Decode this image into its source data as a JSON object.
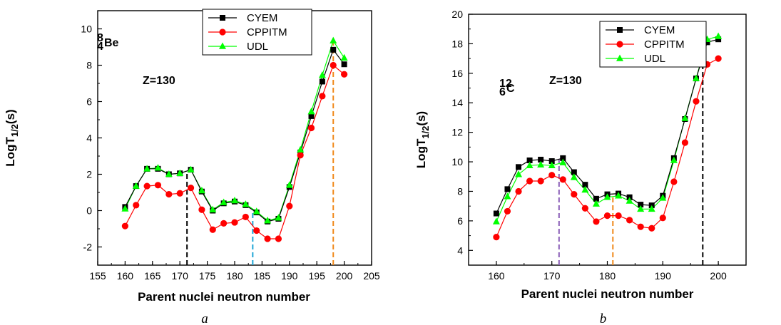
{
  "chart_data": [
    {
      "type": "line",
      "caption": "a",
      "xlabel": "Parent nuclei neutron number",
      "ylabel": "LogT1/2(s)",
      "xlim": [
        155,
        205
      ],
      "ylim": [
        -3,
        11
      ],
      "xticks": [
        155,
        160,
        165,
        170,
        175,
        180,
        185,
        190,
        195,
        200,
        205
      ],
      "yticks": [
        -2,
        0,
        2,
        4,
        6,
        8,
        10
      ],
      "legend_position": "top-center",
      "grid": false,
      "annotations": {
        "nucleus": {
          "mass": "8",
          "charge": "4",
          "symbol": "Be"
        },
        "z_label": "Z=130"
      },
      "x": [
        160,
        162,
        164,
        166,
        168,
        170,
        172,
        174,
        176,
        178,
        180,
        182,
        184,
        186,
        188,
        190,
        192,
        194,
        196,
        198,
        200
      ],
      "series": [
        {
          "name": "CYEM",
          "color": "#000000",
          "marker": "square",
          "values": [
            0.2,
            1.35,
            2.3,
            2.3,
            2.0,
            2.05,
            2.25,
            1.05,
            0.0,
            0.4,
            0.5,
            0.3,
            -0.1,
            -0.6,
            -0.45,
            1.3,
            3.2,
            5.2,
            7.1,
            8.85,
            8.05
          ]
        },
        {
          "name": "CPPITM",
          "color": "#ff0000",
          "marker": "circle",
          "values": [
            -0.85,
            0.3,
            1.35,
            1.4,
            0.9,
            0.95,
            1.25,
            0.05,
            -1.05,
            -0.7,
            -0.65,
            -0.35,
            -1.1,
            -1.55,
            -1.55,
            0.25,
            3.05,
            4.55,
            6.3,
            8.0,
            7.5
          ]
        },
        {
          "name": "UDL",
          "color": "#00ff00",
          "marker": "triangle",
          "values": [
            0.1,
            1.35,
            2.3,
            2.35,
            2.0,
            2.05,
            2.25,
            1.1,
            0.05,
            0.45,
            0.55,
            0.35,
            -0.05,
            -0.55,
            -0.4,
            1.4,
            3.35,
            5.45,
            7.45,
            9.35,
            8.4
          ]
        }
      ],
      "reference_lines": [
        {
          "x": 171.3,
          "color": "#000000"
        },
        {
          "x": 183.3,
          "color": "#1ea5d6"
        },
        {
          "x": 198.0,
          "color": "#f08a1c"
        }
      ]
    },
    {
      "type": "line",
      "caption": "b",
      "xlabel": "Parent nuclei neutron number",
      "ylabel": "LogT1/2(s)",
      "xlim": [
        155,
        205
      ],
      "ylim": [
        3,
        20
      ],
      "xticks": [
        160,
        170,
        180,
        190,
        200
      ],
      "yticks": [
        4,
        6,
        8,
        10,
        12,
        14,
        16,
        18,
        20
      ],
      "legend_position": "top-right",
      "grid": false,
      "annotations": {
        "nucleus": {
          "mass": "12",
          "charge": "6",
          "symbol": "C"
        },
        "z_label": "Z=130"
      },
      "x": [
        160,
        162,
        164,
        166,
        168,
        170,
        172,
        174,
        176,
        178,
        180,
        182,
        184,
        186,
        188,
        190,
        192,
        194,
        196,
        198,
        200
      ],
      "series": [
        {
          "name": "CYEM",
          "color": "#000000",
          "marker": "square",
          "values": [
            6.5,
            8.15,
            9.65,
            10.1,
            10.15,
            10.05,
            10.25,
            9.3,
            8.45,
            7.5,
            7.8,
            7.85,
            7.6,
            7.1,
            7.05,
            7.7,
            10.25,
            12.9,
            15.65,
            18.1,
            18.3
          ]
        },
        {
          "name": "CPPITM",
          "color": "#ff0000",
          "marker": "circle",
          "values": [
            4.9,
            6.65,
            8.0,
            8.7,
            8.7,
            9.1,
            8.8,
            7.8,
            6.85,
            5.95,
            6.35,
            6.35,
            6.05,
            5.6,
            5.5,
            6.2,
            8.65,
            11.3,
            14.1,
            16.6,
            17.0
          ]
        },
        {
          "name": "UDL",
          "color": "#00ff00",
          "marker": "triangle",
          "values": [
            5.95,
            7.65,
            9.15,
            9.75,
            9.8,
            9.75,
            9.95,
            8.95,
            8.1,
            7.15,
            7.6,
            7.7,
            7.35,
            6.8,
            6.8,
            7.55,
            10.1,
            12.95,
            15.65,
            18.3,
            18.5
          ]
        }
      ],
      "reference_lines": [
        {
          "x": 171.3,
          "color": "#8a5fb8"
        },
        {
          "x": 181.0,
          "color": "#f08a1c"
        },
        {
          "x": 197.2,
          "color": "#000000"
        }
      ]
    }
  ]
}
